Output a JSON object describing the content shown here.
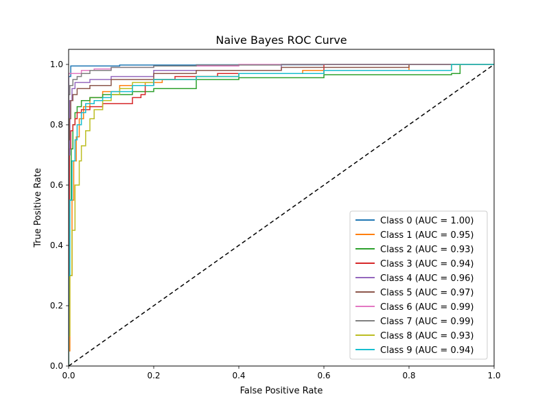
{
  "chart_data": {
    "type": "line",
    "title": "Naive Bayes ROC Curve",
    "xlabel": "False Positive Rate",
    "ylabel": "True Positive Rate",
    "xlim": [
      0.0,
      1.0
    ],
    "ylim": [
      0.0,
      1.05
    ],
    "xticks": [
      "0.0",
      "0.2",
      "0.4",
      "0.6",
      "0.8",
      "1.0"
    ],
    "yticks": [
      "0.0",
      "0.2",
      "0.4",
      "0.6",
      "0.8",
      "1.0"
    ],
    "grid": false,
    "legend_position": "lower right",
    "diagonal": {
      "x": [
        0,
        1
      ],
      "y": [
        0,
        1
      ],
      "color": "#000000",
      "style": "dashed"
    },
    "series": [
      {
        "name": "Class 0 (AUC = 1.00)",
        "color": "#1f77b4",
        "x": [
          0,
          0.0,
          0.005,
          0.005,
          0.12,
          0.12,
          0.3,
          0.3,
          0.6,
          0.6,
          1.0
        ],
        "y": [
          0,
          0.96,
          0.96,
          0.995,
          0.995,
          0.998,
          0.998,
          0.999,
          0.999,
          1.0,
          1.0
        ]
      },
      {
        "name": "Class 1 (AUC = 0.95)",
        "color": "#ff7f0e",
        "x": [
          0,
          0.003,
          0.008,
          0.012,
          0.018,
          0.025,
          0.035,
          0.05,
          0.08,
          0.12,
          0.18,
          0.22,
          0.3,
          0.4,
          0.55,
          0.8,
          1.0
        ],
        "y": [
          0,
          0.05,
          0.3,
          0.55,
          0.68,
          0.76,
          0.82,
          0.86,
          0.89,
          0.91,
          0.93,
          0.94,
          0.95,
          0.96,
          0.97,
          0.98,
          1.0
        ]
      },
      {
        "name": "Class 2 (AUC = 0.93)",
        "color": "#2ca02c",
        "x": [
          0,
          0.002,
          0.006,
          0.01,
          0.015,
          0.02,
          0.03,
          0.05,
          0.08,
          0.1,
          0.15,
          0.2,
          0.3,
          0.4,
          0.6,
          0.9,
          0.92,
          1.0
        ],
        "y": [
          0,
          0.2,
          0.55,
          0.72,
          0.8,
          0.84,
          0.86,
          0.88,
          0.89,
          0.9,
          0.9,
          0.91,
          0.92,
          0.95,
          0.956,
          0.966,
          0.97,
          1.0
        ]
      },
      {
        "name": "Class 3 (AUC = 0.94)",
        "color": "#d62728",
        "x": [
          0,
          0.002,
          0.005,
          0.01,
          0.015,
          0.02,
          0.03,
          0.05,
          0.08,
          0.1,
          0.15,
          0.17,
          0.18,
          0.2,
          0.25,
          0.35,
          0.6,
          1.0
        ],
        "y": [
          0,
          0.55,
          0.72,
          0.78,
          0.8,
          0.82,
          0.84,
          0.85,
          0.86,
          0.87,
          0.87,
          0.89,
          0.9,
          0.93,
          0.95,
          0.96,
          0.97,
          1.0
        ]
      },
      {
        "name": "Class 4 (AUC = 0.96)",
        "color": "#9467bd",
        "x": [
          0,
          0.003,
          0.008,
          0.015,
          0.025,
          0.05,
          0.1,
          0.2,
          0.5,
          1.0
        ],
        "y": [
          0,
          0.7,
          0.88,
          0.92,
          0.94,
          0.94,
          0.95,
          0.96,
          0.98,
          1.0
        ]
      },
      {
        "name": "Class 5 (AUC = 0.97)",
        "color": "#8c564b",
        "x": [
          0,
          0.002,
          0.005,
          0.01,
          0.02,
          0.05,
          0.1,
          0.2,
          0.3,
          0.5,
          0.8,
          1.0
        ],
        "y": [
          0,
          0.75,
          0.82,
          0.88,
          0.9,
          0.92,
          0.93,
          0.95,
          0.97,
          0.98,
          0.99,
          1.0
        ]
      },
      {
        "name": "Class 6 (AUC = 0.99)",
        "color": "#e377c2",
        "x": [
          0,
          0.0,
          0.005,
          0.03,
          0.06,
          0.1,
          0.2,
          0.4,
          1.0
        ],
        "y": [
          0,
          0.95,
          0.97,
          0.97,
          0.98,
          0.985,
          0.99,
          0.995,
          1.0
        ]
      },
      {
        "name": "Class 7 (AUC = 0.99)",
        "color": "#7f7f7f",
        "x": [
          0,
          0.003,
          0.01,
          0.02,
          0.03,
          0.05,
          0.1,
          0.2,
          0.3,
          0.5,
          1.0
        ],
        "y": [
          0,
          0.9,
          0.93,
          0.95,
          0.96,
          0.97,
          0.98,
          0.99,
          0.995,
          0.998,
          1.0
        ]
      },
      {
        "name": "Class 8 (AUC = 0.93)",
        "color": "#bcbd22",
        "x": [
          0,
          0.003,
          0.008,
          0.015,
          0.025,
          0.03,
          0.04,
          0.05,
          0.06,
          0.08,
          0.1,
          0.12,
          0.15,
          0.2,
          0.3,
          0.4,
          0.6,
          0.9,
          1.0
        ],
        "y": [
          0,
          0.1,
          0.3,
          0.45,
          0.6,
          0.68,
          0.73,
          0.78,
          0.82,
          0.85,
          0.88,
          0.9,
          0.92,
          0.94,
          0.95,
          0.96,
          0.97,
          0.98,
          1.0
        ]
      },
      {
        "name": "Class 9 (AUC = 0.94)",
        "color": "#17becf",
        "x": [
          0,
          0.003,
          0.008,
          0.015,
          0.02,
          0.03,
          0.04,
          0.06,
          0.08,
          0.1,
          0.15,
          0.2,
          0.3,
          0.4,
          0.6,
          0.9,
          1.0
        ],
        "y": [
          0,
          0.3,
          0.55,
          0.68,
          0.75,
          0.8,
          0.84,
          0.87,
          0.88,
          0.89,
          0.91,
          0.93,
          0.95,
          0.96,
          0.97,
          0.98,
          1.0
        ]
      }
    ]
  }
}
